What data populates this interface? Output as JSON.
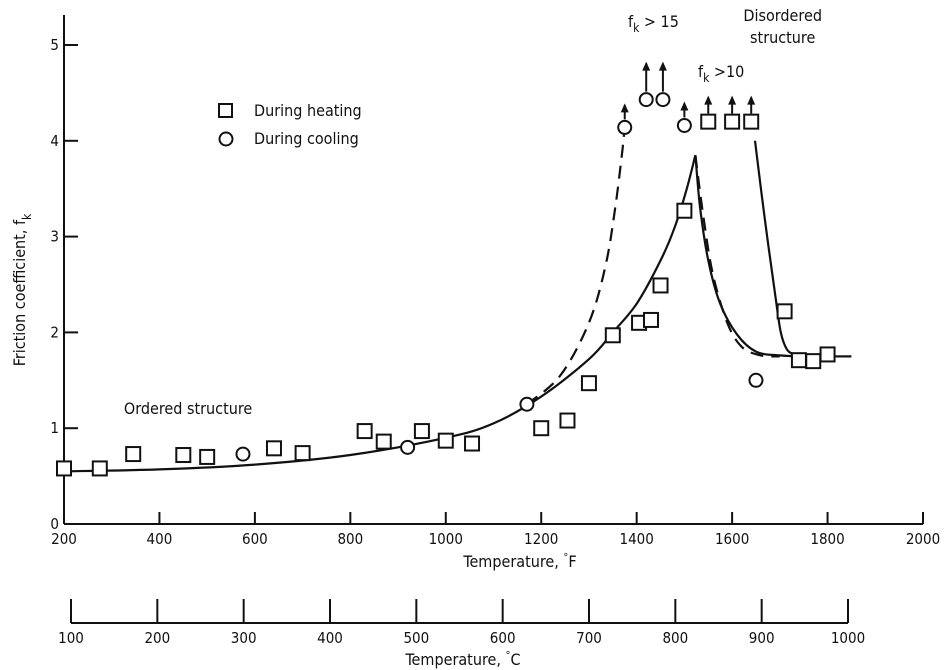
{
  "chart_data": {
    "type": "scatter",
    "xlabel": "Temperature, °F",
    "xlabel_text": "Temperature,",
    "xlabel_unit": "F",
    "xlabel2": "Temperature, °C",
    "xlabel2_text": "Temperature,",
    "xlabel2_unit": "C",
    "ylabel": "Friction coefficient, f",
    "ylabel_sub": "k",
    "xlim": [
      200,
      2000
    ],
    "ylim": [
      0,
      5
    ],
    "x2lim": [
      100,
      1000
    ],
    "xticks": [
      200,
      400,
      600,
      800,
      1000,
      1200,
      1400,
      1600,
      1800,
      2000
    ],
    "yticks": [
      0,
      1,
      2,
      3,
      4,
      5
    ],
    "x2ticks": [
      100,
      200,
      300,
      400,
      500,
      600,
      700,
      800,
      900,
      1000
    ],
    "legend": {
      "placement": "top-left"
    },
    "series": [
      {
        "name": "During heating",
        "marker": "square",
        "points": [
          [
            200,
            0.58
          ],
          [
            275,
            0.58
          ],
          [
            345,
            0.73
          ],
          [
            450,
            0.72
          ],
          [
            500,
            0.7
          ],
          [
            640,
            0.79
          ],
          [
            700,
            0.74
          ],
          [
            830,
            0.97
          ],
          [
            870,
            0.86
          ],
          [
            950,
            0.97
          ],
          [
            1000,
            0.87
          ],
          [
            1055,
            0.84
          ],
          [
            1200,
            1.0
          ],
          [
            1255,
            1.08
          ],
          [
            1300,
            1.47
          ],
          [
            1350,
            1.97
          ],
          [
            1405,
            2.1
          ],
          [
            1430,
            2.13
          ],
          [
            1450,
            2.49
          ],
          [
            1500,
            3.27
          ],
          [
            1550,
            4.2
          ],
          [
            1600,
            4.2
          ],
          [
            1640,
            4.2
          ],
          [
            1710,
            2.22
          ],
          [
            1740,
            1.71
          ],
          [
            1770,
            1.7
          ],
          [
            1800,
            1.77
          ]
        ],
        "arrow_points": [
          [
            1550,
            4.2
          ],
          [
            1600,
            4.2
          ],
          [
            1640,
            4.2
          ]
        ]
      },
      {
        "name": "During cooling",
        "marker": "circle",
        "points": [
          [
            575,
            0.73
          ],
          [
            920,
            0.8
          ],
          [
            1170,
            1.25
          ],
          [
            1375,
            4.14
          ],
          [
            1420,
            4.43
          ],
          [
            1455,
            4.43
          ],
          [
            1500,
            4.16
          ],
          [
            1650,
            1.5
          ]
        ],
        "arrow_points": [
          [
            1375,
            4.14
          ],
          [
            1420,
            4.43
          ],
          [
            1455,
            4.43
          ],
          [
            1500,
            4.16
          ]
        ]
      }
    ],
    "curves": [
      {
        "style": "solid",
        "points": [
          [
            200,
            0.55
          ],
          [
            400,
            0.57
          ],
          [
            600,
            0.62
          ],
          [
            800,
            0.72
          ],
          [
            1000,
            0.9
          ],
          [
            1100,
            1.05
          ],
          [
            1200,
            1.33
          ],
          [
            1300,
            1.72
          ],
          [
            1350,
            2.0
          ],
          [
            1400,
            2.3
          ],
          [
            1450,
            2.75
          ],
          [
            1480,
            3.1
          ],
          [
            1505,
            3.5
          ],
          [
            1523,
            3.85
          ]
        ]
      },
      {
        "style": "dashed",
        "points": [
          [
            1170,
            1.25
          ],
          [
            1240,
            1.55
          ],
          [
            1300,
            2.1
          ],
          [
            1335,
            2.7
          ],
          [
            1355,
            3.3
          ],
          [
            1370,
            3.9
          ],
          [
            1377,
            4.25
          ]
        ]
      },
      {
        "style": "dashed",
        "points": [
          [
            1523,
            3.85
          ],
          [
            1540,
            3.2
          ],
          [
            1560,
            2.6
          ],
          [
            1590,
            2.1
          ],
          [
            1620,
            1.85
          ],
          [
            1660,
            1.76
          ],
          [
            1700,
            1.75
          ]
        ]
      },
      {
        "style": "solid",
        "points": [
          [
            1523,
            3.85
          ],
          [
            1533,
            3.3
          ],
          [
            1550,
            2.75
          ],
          [
            1575,
            2.3
          ],
          [
            1610,
            1.98
          ],
          [
            1650,
            1.8
          ],
          [
            1700,
            1.76
          ],
          [
            1760,
            1.75
          ],
          [
            1850,
            1.75
          ]
        ]
      },
      {
        "style": "solid",
        "points": [
          [
            1648,
            4.0
          ],
          [
            1668,
            3.2
          ],
          [
            1690,
            2.4
          ],
          [
            1702,
            2.0
          ],
          [
            1715,
            1.82
          ],
          [
            1730,
            1.77
          ]
        ]
      }
    ],
    "annotations": [
      {
        "text": "Ordered structure",
        "x": 460,
        "y": 1.15
      },
      {
        "text": "Disordered",
        "x": 1706,
        "y": 5.25
      },
      {
        "text": "structure",
        "x": 1706,
        "y": 5.02
      }
    ],
    "fk15": {
      "base": "f",
      "sub": "k",
      "rest": "> 15"
    },
    "fk10": {
      "base": "f",
      "sub": "k",
      "rest": ">10"
    }
  }
}
